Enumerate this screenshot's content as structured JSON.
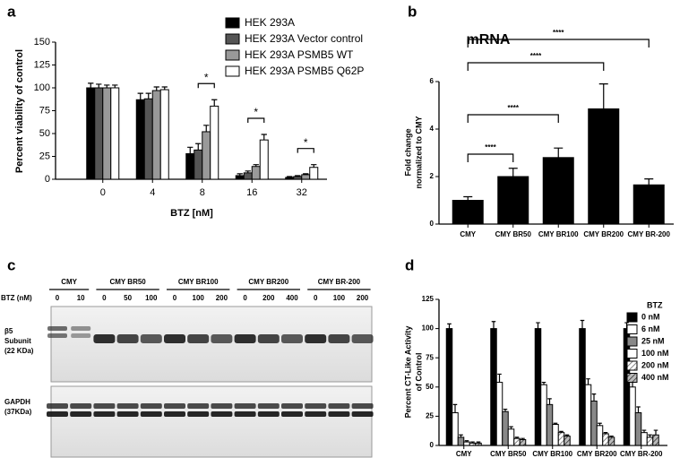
{
  "panel_labels": [
    "a",
    "b",
    "c",
    "d"
  ],
  "chart_data": [
    {
      "type": "bar",
      "categories": [
        0,
        4,
        8,
        16,
        32
      ],
      "xlabel": "BTZ [nM]",
      "ylabel": "Percent viability of control",
      "ylim": [
        0,
        150
      ],
      "yticks": [
        0,
        25,
        50,
        75,
        100,
        125,
        150
      ],
      "series": [
        {
          "name": "HEK 293A",
          "color": "#000000",
          "values": [
            100,
            87,
            28,
            4,
            2
          ],
          "errors": [
            5,
            7,
            7,
            2,
            1
          ]
        },
        {
          "name": "HEK 293A Vector control",
          "color": "#555555",
          "values": [
            100,
            88,
            32,
            7,
            3
          ],
          "errors": [
            4,
            6,
            7,
            2,
            1
          ]
        },
        {
          "name": "HEK 293A PSMB5 WT",
          "color": "#999999",
          "values": [
            100,
            97,
            52,
            14,
            5
          ],
          "errors": [
            3,
            4,
            7,
            2,
            1
          ]
        },
        {
          "name": "HEK 293A PSMB5 Q62P",
          "color": "#ffffff",
          "values": [
            100,
            98,
            80,
            43,
            13
          ],
          "errors": [
            3,
            3,
            7,
            6,
            3
          ]
        }
      ],
      "annotations": [
        {
          "x": 8,
          "label": "*"
        },
        {
          "x": 16,
          "label": "*"
        },
        {
          "x": 32,
          "label": "*"
        }
      ]
    },
    {
      "type": "bar",
      "title": "mRNA",
      "categories": [
        "CMY",
        "CMY BR50",
        "CMY BR100",
        "CMY BR200",
        "CMY BR-200"
      ],
      "values": [
        1.0,
        2.0,
        2.8,
        4.85,
        1.65
      ],
      "errors": [
        0.15,
        0.35,
        0.4,
        1.05,
        0.25
      ],
      "color": "#000000",
      "ylabel": [
        "Fold change",
        "normalized to CMY"
      ],
      "ylim": [
        0,
        6
      ],
      "yticks": [
        0,
        2,
        4,
        6
      ],
      "annotations": [
        {
          "x": "CMY BR50",
          "label": "****"
        },
        {
          "x": "CMY BR100",
          "label": "****"
        },
        {
          "x": "CMY BR200",
          "label": "****"
        },
        {
          "x": "CMY BR-200",
          "label": "****"
        }
      ]
    },
    {
      "type": "bar",
      "categories": [
        "CMY",
        "CMY BR50",
        "CMY BR100",
        "CMY BR200",
        "CMY BR-200"
      ],
      "ylabel": [
        "Percent CT-Like Activity",
        "of Control"
      ],
      "ylim": [
        0,
        125
      ],
      "yticks": [
        0,
        25,
        50,
        75,
        100,
        125
      ],
      "legend_title": "BTZ",
      "series": [
        {
          "name": "0 nM",
          "color": "#000000",
          "values": [
            100,
            100,
            100,
            100,
            100
          ],
          "errors": [
            4,
            6,
            5,
            7,
            5
          ]
        },
        {
          "name": "6 nM",
          "color": "#ffffff",
          "values": [
            28,
            54,
            52,
            52,
            50
          ],
          "errors": [
            7,
            7,
            2,
            5,
            5
          ]
        },
        {
          "name": "25 nM",
          "color": "#888888",
          "values": [
            7,
            29,
            35,
            38,
            28
          ],
          "errors": [
            2,
            2,
            5,
            6,
            5
          ]
        },
        {
          "name": "100 nM",
          "color": "#ffffff",
          "values": [
            3,
            14,
            18,
            17,
            11
          ],
          "errors": [
            1,
            2,
            1,
            2,
            2
          ]
        },
        {
          "name": "200 nM",
          "color": "#ffffff",
          "hatch": "#666666",
          "values": [
            2,
            6,
            11,
            10,
            7
          ],
          "errors": [
            1,
            1,
            1,
            1,
            2
          ]
        },
        {
          "name": "400 nM",
          "color": "#bbbbbb",
          "hatch": "#333333",
          "values": [
            2,
            5,
            8,
            7,
            9
          ],
          "errors": [
            1,
            1,
            1,
            1,
            4
          ]
        }
      ]
    }
  ],
  "blot": {
    "lane_title": "BTZ (nM)",
    "groups": [
      {
        "label": "CMY",
        "lanes": [
          0,
          10
        ]
      },
      {
        "label": "CMY BR50",
        "lanes": [
          0,
          50,
          100
        ]
      },
      {
        "label": "CMY BR100",
        "lanes": [
          0,
          100,
          200
        ]
      },
      {
        "label": "CMY BR200",
        "lanes": [
          0,
          200,
          400
        ]
      },
      {
        "label": "CMY BR-200",
        "lanes": [
          0,
          100,
          200
        ]
      }
    ],
    "rows": [
      {
        "label": [
          "β5",
          "Subunit",
          "(22 KDa)"
        ]
      },
      {
        "label": [
          "GAPDH",
          "(37KDa)"
        ]
      }
    ]
  }
}
